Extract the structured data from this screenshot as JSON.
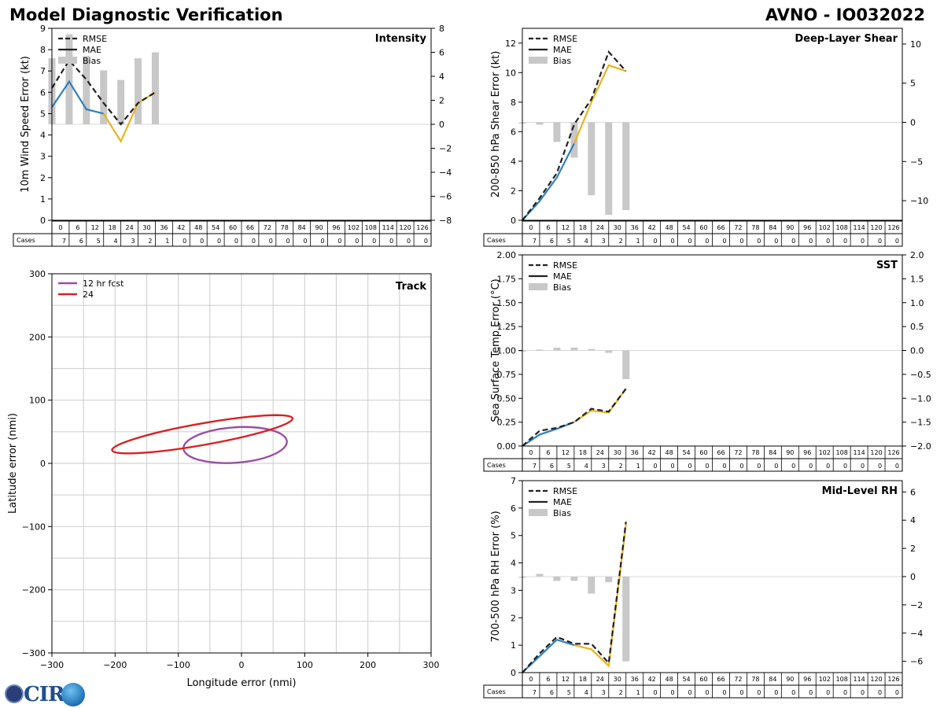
{
  "header": {
    "title": "Model Diagnostic Verification",
    "storm": "AVNO - IO032022"
  },
  "logo": {
    "text": "CIRA"
  },
  "colors": {
    "rmse": "#222222",
    "mae_early": "#2f7fbd",
    "mae_late": "#e8b321",
    "bias": "#c8c8c8",
    "track_12": "#9b4ea3",
    "track_24": "#d62222",
    "grid": "#d3d3d3"
  },
  "legend": {
    "rmse": "RMSE",
    "mae": "MAE",
    "bias": "Bias"
  },
  "cases_label": "Cases",
  "taus": [
    0,
    6,
    12,
    18,
    24,
    30,
    36,
    42,
    48,
    54,
    60,
    66,
    72,
    78,
    84,
    90,
    96,
    102,
    108,
    114,
    120,
    126
  ],
  "cases": [
    7,
    6,
    5,
    4,
    3,
    2,
    1,
    0,
    0,
    0,
    0,
    0,
    0,
    0,
    0,
    0,
    0,
    0,
    0,
    0,
    0,
    0
  ],
  "chart_data": [
    {
      "type": "line",
      "title": "Intensity",
      "ylabel": "10m Wind Speed Error (kt)",
      "ylim": [
        0,
        9
      ],
      "y2lim": [
        -8,
        8
      ],
      "yticks": [
        0,
        1,
        2,
        3,
        4,
        5,
        6,
        7,
        8,
        9
      ],
      "y2ticks": [
        -8,
        -6,
        -4,
        -2,
        0,
        2,
        4,
        6,
        8
      ],
      "x": [
        0,
        6,
        12,
        18,
        24,
        30,
        36
      ],
      "series": [
        {
          "name": "RMSE",
          "values": [
            6.2,
            7.5,
            6.6,
            5.5,
            4.5,
            5.5,
            6.0
          ]
        },
        {
          "name": "MAE",
          "values": [
            5.3,
            6.5,
            5.2,
            5.0,
            3.7,
            5.5,
            6.0
          ]
        },
        {
          "name": "Bias",
          "axis": "right",
          "values": [
            5.5,
            7.5,
            5.7,
            4.5,
            3.7,
            5.5,
            6.0
          ]
        }
      ]
    },
    {
      "type": "line",
      "title": "Deep-Layer Shear",
      "ylabel": "200-850 hPa Shear Error (kt)",
      "ylim": [
        0,
        13
      ],
      "y2lim": [
        -12.5,
        12
      ],
      "yticks": [
        0,
        2,
        4,
        6,
        8,
        10,
        12
      ],
      "y2ticks": [
        -10,
        -5,
        0,
        5,
        10
      ],
      "x": [
        0,
        6,
        12,
        18,
        24,
        30,
        36
      ],
      "series": [
        {
          "name": "RMSE",
          "values": [
            0,
            1.5,
            3.2,
            6.5,
            8.2,
            11.4,
            10.1
          ]
        },
        {
          "name": "MAE",
          "values": [
            0,
            1.3,
            2.9,
            5.2,
            8.0,
            10.5,
            10.1
          ]
        },
        {
          "name": "Bias",
          "axis": "right",
          "values": [
            0,
            -0.3,
            -2.5,
            -4.5,
            -9.3,
            -11.8,
            -11.2
          ]
        }
      ]
    },
    {
      "type": "line",
      "title": "SST",
      "ylabel": "Sea Surface Temp Error (°C)",
      "ylim": [
        0,
        2
      ],
      "y2lim": [
        -2,
        2
      ],
      "yticks": [
        0.0,
        0.25,
        0.5,
        0.75,
        1.0,
        1.25,
        1.5,
        1.75,
        2.0
      ],
      "y2ticks": [
        -2.0,
        -1.5,
        -1.0,
        -0.5,
        0.0,
        0.5,
        1.0,
        1.5,
        2.0
      ],
      "x": [
        0,
        6,
        12,
        18,
        24,
        30,
        36
      ],
      "series": [
        {
          "name": "RMSE",
          "values": [
            0,
            0.16,
            0.19,
            0.25,
            0.39,
            0.36,
            0.6
          ]
        },
        {
          "name": "MAE",
          "values": [
            0,
            0.12,
            0.18,
            0.25,
            0.37,
            0.35,
            0.6
          ]
        },
        {
          "name": "Bias",
          "axis": "right",
          "values": [
            0,
            0.02,
            0.06,
            0.06,
            0.03,
            -0.05,
            -0.6
          ]
        }
      ]
    },
    {
      "type": "line",
      "title": "Mid-Level RH",
      "ylabel": "700-500 hPa RH Error (%)",
      "ylim": [
        0,
        7
      ],
      "y2lim": [
        -6.8,
        6.8
      ],
      "yticks": [
        0,
        1,
        2,
        3,
        4,
        5,
        6,
        7
      ],
      "y2ticks": [
        -6,
        -4,
        -2,
        0,
        2,
        4,
        6
      ],
      "x": [
        0,
        6,
        12,
        18,
        24,
        30,
        36
      ],
      "series": [
        {
          "name": "RMSE",
          "values": [
            0,
            0.7,
            1.3,
            1.05,
            1.05,
            0.35,
            5.5
          ]
        },
        {
          "name": "MAE",
          "values": [
            0,
            0.6,
            1.2,
            1.0,
            0.85,
            0.25,
            5.4
          ]
        },
        {
          "name": "Bias",
          "axis": "right",
          "values": [
            0,
            0.2,
            -0.3,
            -0.3,
            -1.2,
            -0.4,
            -6.0
          ]
        }
      ]
    },
    {
      "type": "scatter",
      "title": "Track",
      "xlabel": "Longitude error (nmi)",
      "ylabel": "Latitude error (nmi)",
      "xlim": [
        -300,
        300
      ],
      "ylim": [
        -300,
        300
      ],
      "xticks": [
        -300,
        -200,
        -100,
        0,
        100,
        200,
        300
      ],
      "yticks": [
        -300,
        -200,
        -100,
        0,
        100,
        200,
        300
      ],
      "ellipses": [
        {
          "name": "12 hr fcst",
          "cx": -10,
          "cy": 29,
          "rx": 82,
          "ry": 28,
          "angle": 4
        },
        {
          "name": "24",
          "cx": -62,
          "cy": 46,
          "rx": 145,
          "ry": 17,
          "angle": 10
        }
      ]
    }
  ]
}
